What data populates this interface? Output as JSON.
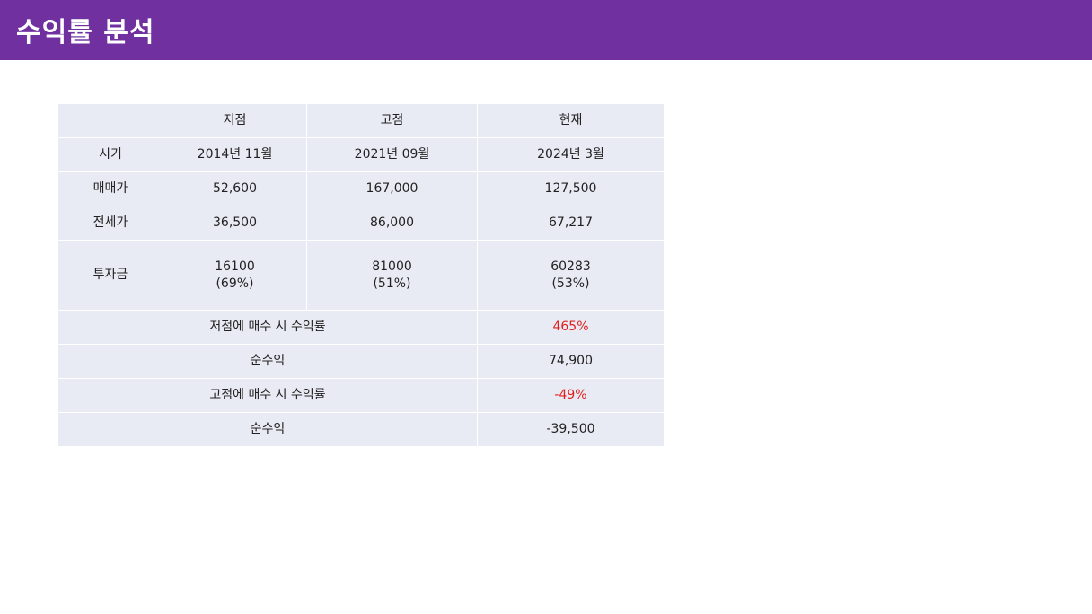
{
  "header": {
    "title": "수익률 분석"
  },
  "table": {
    "columns": [
      "",
      "저점",
      "고점",
      "현재"
    ],
    "rows": [
      {
        "label": "시기",
        "values": [
          "2014년 11월",
          "2021년 09월",
          "2024년 3월"
        ]
      },
      {
        "label": "매매가",
        "values": [
          "52,600",
          "167,000",
          "127,500"
        ]
      },
      {
        "label": "전세가",
        "values": [
          "36,500",
          "86,000",
          "67,217"
        ]
      },
      {
        "label": "투자금",
        "values": [
          {
            "amount": "16100",
            "ratio": "(69%)"
          },
          {
            "amount": "81000",
            "ratio": "(51%)"
          },
          {
            "amount": "60283",
            "ratio": "(53%)"
          }
        ]
      }
    ],
    "summary": [
      {
        "label": "저점에 매수 시 수익률",
        "value": "465%"
      },
      {
        "label": "순수익",
        "value": "74,900"
      },
      {
        "label": "고점에 매수 시 수익률",
        "value": "-49%"
      },
      {
        "label": "순수익",
        "value": "-39,500"
      }
    ]
  },
  "colors": {
    "header_background": "#7030a0",
    "table_cell": "#e9ebf4",
    "negative_text": "#e0201f"
  }
}
